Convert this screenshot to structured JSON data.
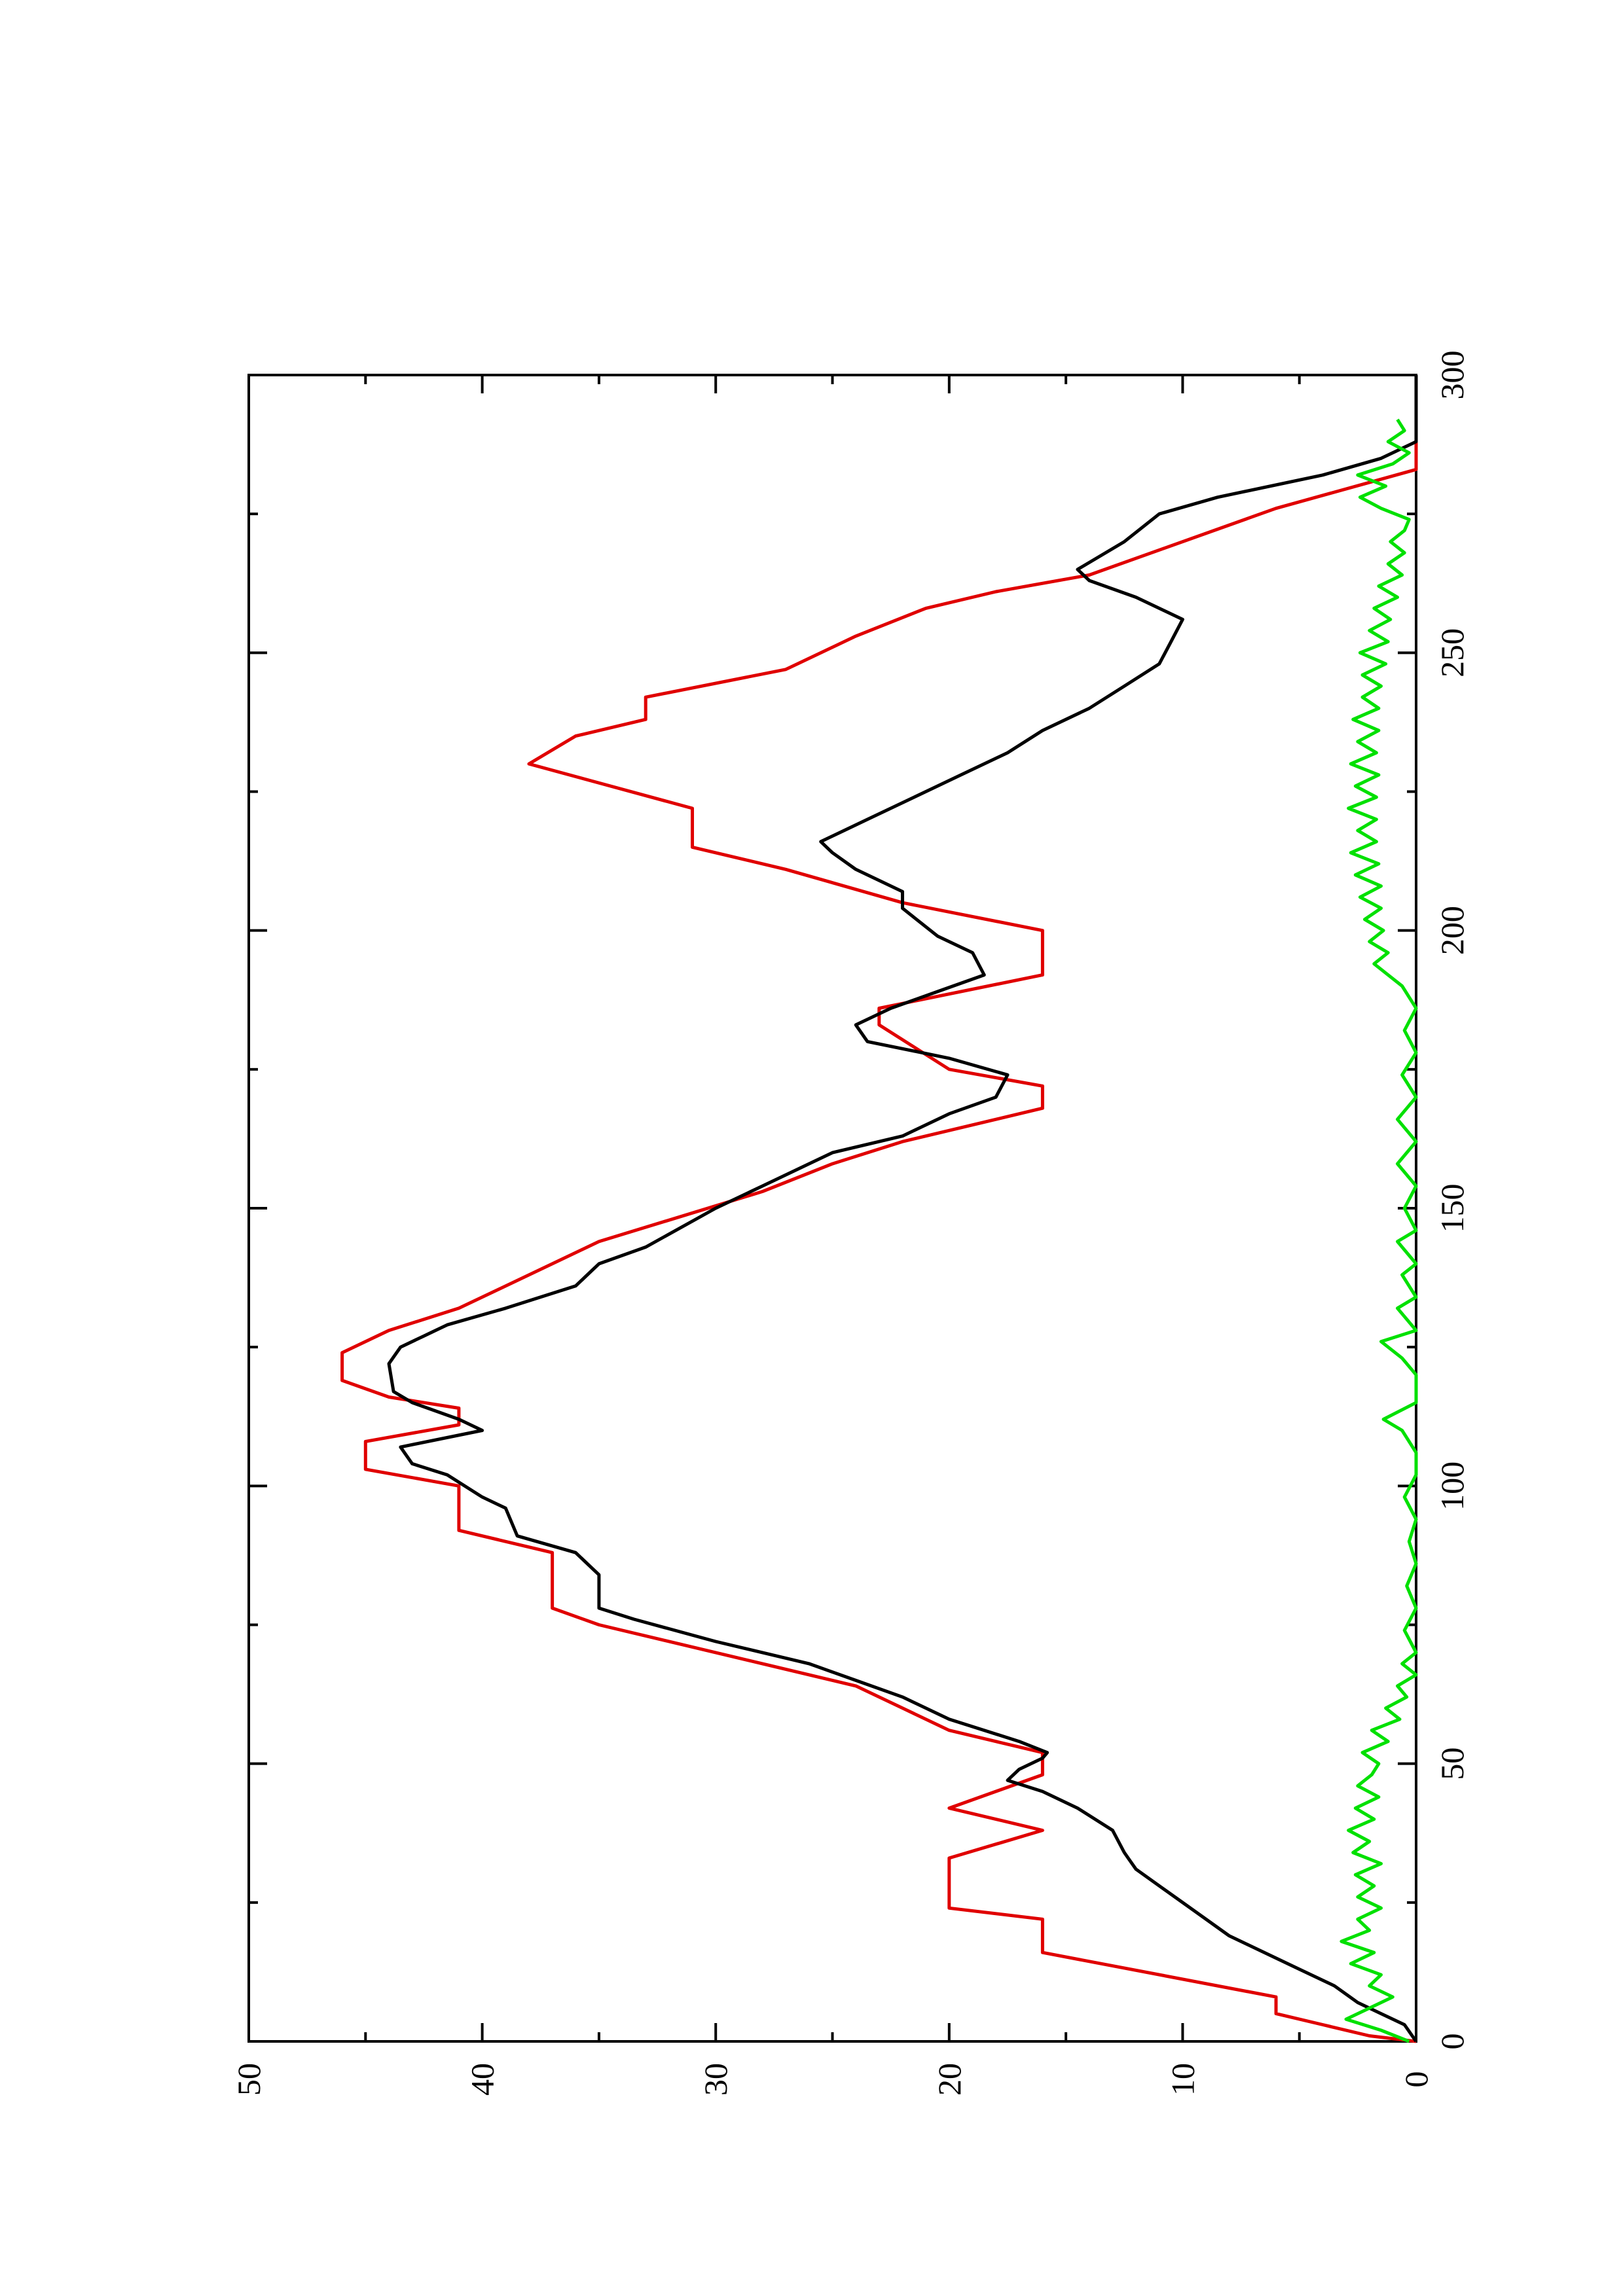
{
  "chart_data": {
    "type": "line",
    "orientation": "rotated-90-ccw",
    "title": "",
    "xlabel": "",
    "ylabel": "",
    "xlim": [
      0,
      300
    ],
    "ylim": [
      0,
      50
    ],
    "x_ticks": [
      "0",
      "50",
      "100",
      "150",
      "200",
      "250",
      "300"
    ],
    "y_ticks": [
      "0",
      "10",
      "20",
      "30",
      "40",
      "50"
    ],
    "grid": false,
    "legend": "none",
    "series": [
      {
        "color": "#e00000",
        "points": [
          [
            0,
            0
          ],
          [
            1,
            2
          ],
          [
            3,
            4
          ],
          [
            5,
            6
          ],
          [
            8,
            6
          ],
          [
            16,
            16
          ],
          [
            22,
            16
          ],
          [
            24,
            20
          ],
          [
            33,
            20
          ],
          [
            38,
            16
          ],
          [
            42,
            20
          ],
          [
            48,
            16
          ],
          [
            52,
            16
          ],
          [
            54,
            18
          ],
          [
            56,
            20
          ],
          [
            60,
            22
          ],
          [
            64,
            24
          ],
          [
            68,
            28
          ],
          [
            75,
            35
          ],
          [
            78,
            37
          ],
          [
            88,
            37
          ],
          [
            92,
            41
          ],
          [
            100,
            41
          ],
          [
            103,
            45
          ],
          [
            108,
            45
          ],
          [
            111,
            41
          ],
          [
            114,
            41
          ],
          [
            116,
            44
          ],
          [
            119,
            46
          ],
          [
            124,
            46
          ],
          [
            128,
            44
          ],
          [
            132,
            41
          ],
          [
            140,
            37
          ],
          [
            144,
            35
          ],
          [
            153,
            28
          ],
          [
            158,
            25
          ],
          [
            162,
            22
          ],
          [
            168,
            16
          ],
          [
            172,
            16
          ],
          [
            175,
            20
          ],
          [
            183,
            23
          ],
          [
            186,
            23
          ],
          [
            192,
            16
          ],
          [
            200,
            16
          ],
          [
            205,
            22
          ],
          [
            211,
            27
          ],
          [
            215,
            31
          ],
          [
            222,
            31
          ],
          [
            230,
            38
          ],
          [
            235,
            36
          ],
          [
            238,
            33
          ],
          [
            242,
            33
          ],
          [
            247,
            27
          ],
          [
            253,
            24
          ],
          [
            258,
            21
          ],
          [
            261,
            18
          ],
          [
            264,
            14
          ],
          [
            276,
            6
          ],
          [
            283,
            0
          ],
          [
            300,
            0
          ]
        ]
      },
      {
        "color": "#000000",
        "points": [
          [
            0,
            0
          ],
          [
            3,
            0.5
          ],
          [
            5,
            1.5
          ],
          [
            7,
            2.5
          ],
          [
            10,
            3.5
          ],
          [
            13,
            5
          ],
          [
            16,
            6.5
          ],
          [
            19,
            8
          ],
          [
            22,
            9
          ],
          [
            25,
            10
          ],
          [
            28,
            11
          ],
          [
            31,
            12
          ],
          [
            34,
            12.5
          ],
          [
            38,
            13
          ],
          [
            42,
            14.5
          ],
          [
            45,
            16
          ],
          [
            47,
            17.5
          ],
          [
            49,
            17
          ],
          [
            51,
            16
          ],
          [
            52,
            15.8
          ],
          [
            54,
            17
          ],
          [
            58,
            20
          ],
          [
            62,
            22
          ],
          [
            65,
            24
          ],
          [
            68,
            26
          ],
          [
            72,
            30
          ],
          [
            76,
            33.5
          ],
          [
            78,
            35
          ],
          [
            84,
            35
          ],
          [
            88,
            36
          ],
          [
            91,
            38.5
          ],
          [
            96,
            39
          ],
          [
            98,
            40
          ],
          [
            102,
            41.5
          ],
          [
            104,
            43
          ],
          [
            107,
            43.5
          ],
          [
            110,
            40
          ],
          [
            112,
            41
          ],
          [
            115,
            43
          ],
          [
            117,
            43.8
          ],
          [
            122,
            44
          ],
          [
            125,
            43.5
          ],
          [
            127,
            42.5
          ],
          [
            129,
            41.5
          ],
          [
            132,
            39
          ],
          [
            136,
            36
          ],
          [
            140,
            35
          ],
          [
            143,
            33
          ],
          [
            150,
            30
          ],
          [
            154,
            28
          ],
          [
            160,
            25
          ],
          [
            163,
            22
          ],
          [
            167,
            20
          ],
          [
            170,
            18
          ],
          [
            174,
            17.5
          ],
          [
            177,
            20
          ],
          [
            180,
            23.5
          ],
          [
            183,
            24
          ],
          [
            186,
            22.5
          ],
          [
            189,
            20.5
          ],
          [
            192,
            18.5
          ],
          [
            196,
            19
          ],
          [
            199,
            20.5
          ],
          [
            204,
            22
          ],
          [
            207,
            22
          ],
          [
            211,
            24
          ],
          [
            214,
            25
          ],
          [
            216,
            25.5
          ],
          [
            220,
            23.5
          ],
          [
            224,
            21.5
          ],
          [
            228,
            19.5
          ],
          [
            232,
            17.5
          ],
          [
            236,
            16
          ],
          [
            240,
            14
          ],
          [
            244,
            12.5
          ],
          [
            248,
            11
          ],
          [
            252,
            10.5
          ],
          [
            256,
            10
          ],
          [
            260,
            12
          ],
          [
            263,
            14
          ],
          [
            265,
            14.5
          ],
          [
            270,
            12.5
          ],
          [
            275,
            11
          ],
          [
            278,
            8.5
          ],
          [
            282,
            4
          ],
          [
            285,
            1.5
          ],
          [
            288,
            0
          ],
          [
            300,
            0
          ]
        ]
      },
      {
        "color": "#00e000",
        "points": [
          [
            0,
            0.3
          ],
          [
            2,
            1.5
          ],
          [
            4,
            3
          ],
          [
            6,
            2
          ],
          [
            8,
            1
          ],
          [
            10,
            2
          ],
          [
            12,
            1.5
          ],
          [
            14,
            2.8
          ],
          [
            16,
            1.8
          ],
          [
            18,
            3.2
          ],
          [
            20,
            2
          ],
          [
            22,
            2.5
          ],
          [
            24,
            1.5
          ],
          [
            26,
            2.5
          ],
          [
            28,
            1.8
          ],
          [
            30,
            2.6
          ],
          [
            32,
            1.5
          ],
          [
            34,
            2.7
          ],
          [
            36,
            2
          ],
          [
            38,
            2.9
          ],
          [
            40,
            1.8
          ],
          [
            42,
            2.6
          ],
          [
            44,
            1.6
          ],
          [
            46,
            2.5
          ],
          [
            48,
            1.9
          ],
          [
            50,
            1.6
          ],
          [
            52,
            2.3
          ],
          [
            54,
            1.2
          ],
          [
            56,
            1.9
          ],
          [
            58,
            0.7
          ],
          [
            60,
            1.3
          ],
          [
            62,
            0.4
          ],
          [
            64,
            0.8
          ],
          [
            66,
            0
          ],
          [
            68,
            0.6
          ],
          [
            70,
            0
          ],
          [
            74,
            0.5
          ],
          [
            78,
            0
          ],
          [
            82,
            0.4
          ],
          [
            86,
            0
          ],
          [
            90,
            0.3
          ],
          [
            94,
            0
          ],
          [
            98,
            0.5
          ],
          [
            102,
            0
          ],
          [
            106,
            0
          ],
          [
            110,
            0.6
          ],
          [
            112,
            1.4
          ],
          [
            115,
            0
          ],
          [
            120,
            0
          ],
          [
            123,
            0.6
          ],
          [
            126,
            1.5
          ],
          [
            128,
            0
          ],
          [
            132,
            0.8
          ],
          [
            134,
            0
          ],
          [
            138,
            0.6
          ],
          [
            140,
            0
          ],
          [
            144,
            0.8
          ],
          [
            146,
            0
          ],
          [
            150,
            0.5
          ],
          [
            154,
            0
          ],
          [
            158,
            0.8
          ],
          [
            162,
            0
          ],
          [
            166,
            0.8
          ],
          [
            170,
            0
          ],
          [
            174,
            0.6
          ],
          [
            178,
            0
          ],
          [
            182,
            0.5
          ],
          [
            186,
            0
          ],
          [
            190,
            0.6
          ],
          [
            192,
            1.2
          ],
          [
            194,
            1.8
          ],
          [
            196,
            1.2
          ],
          [
            198,
            2
          ],
          [
            200,
            1.4
          ],
          [
            202,
            2.2
          ],
          [
            204,
            1.5
          ],
          [
            206,
            2.4
          ],
          [
            208,
            1.5
          ],
          [
            210,
            2.6
          ],
          [
            212,
            1.6
          ],
          [
            214,
            2.8
          ],
          [
            216,
            1.7
          ],
          [
            218,
            2.5
          ],
          [
            220,
            1.7
          ],
          [
            222,
            2.9
          ],
          [
            224,
            1.7
          ],
          [
            226,
            2.6
          ],
          [
            228,
            1.6
          ],
          [
            230,
            2.8
          ],
          [
            232,
            1.7
          ],
          [
            234,
            2.5
          ],
          [
            236,
            1.6
          ],
          [
            238,
            2.7
          ],
          [
            240,
            1.6
          ],
          [
            242,
            2.3
          ],
          [
            244,
            1.5
          ],
          [
            246,
            2.3
          ],
          [
            248,
            1.3
          ],
          [
            250,
            2.4
          ],
          [
            252,
            1.2
          ],
          [
            254,
            2
          ],
          [
            256,
            1.1
          ],
          [
            258,
            1.8
          ],
          [
            260,
            0.8
          ],
          [
            262,
            1.6
          ],
          [
            264,
            0.6
          ],
          [
            266,
            1.2
          ],
          [
            268,
            0.5
          ],
          [
            270,
            1.1
          ],
          [
            272,
            0.5
          ],
          [
            274,
            0.3
          ],
          [
            276,
            1.5
          ],
          [
            278,
            2.4
          ],
          [
            280,
            1.3
          ],
          [
            282,
            2.5
          ],
          [
            284,
            1
          ],
          [
            286,
            0.3
          ],
          [
            288,
            1.2
          ],
          [
            290,
            0.5
          ],
          [
            292,
            0.8
          ]
        ]
      }
    ]
  }
}
